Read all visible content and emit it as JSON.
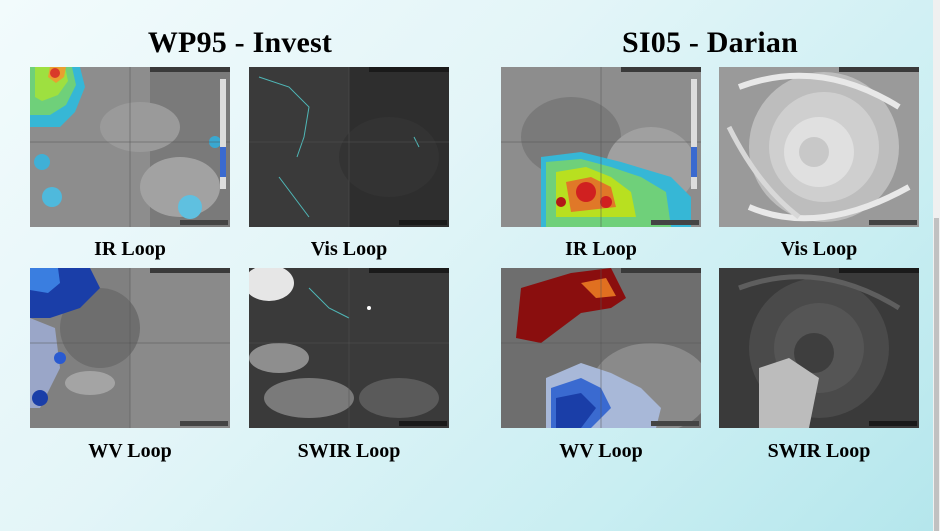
{
  "storms": [
    {
      "title": "WP95 - Invest",
      "loops": [
        {
          "label": "IR Loop",
          "type": "ir-left"
        },
        {
          "label": "Vis Loop",
          "type": "vis-dark"
        },
        {
          "label": "WV Loop",
          "type": "wv-left"
        },
        {
          "label": "SWIR Loop",
          "type": "swir-left"
        }
      ]
    },
    {
      "title": "SI05 - Darian",
      "loops": [
        {
          "label": "IR Loop",
          "type": "ir-right"
        },
        {
          "label": "Vis Loop",
          "type": "vis-swirl"
        },
        {
          "label": "WV Loop",
          "type": "wv-right"
        },
        {
          "label": "SWIR Loop",
          "type": "swir-swirl"
        }
      ]
    }
  ]
}
